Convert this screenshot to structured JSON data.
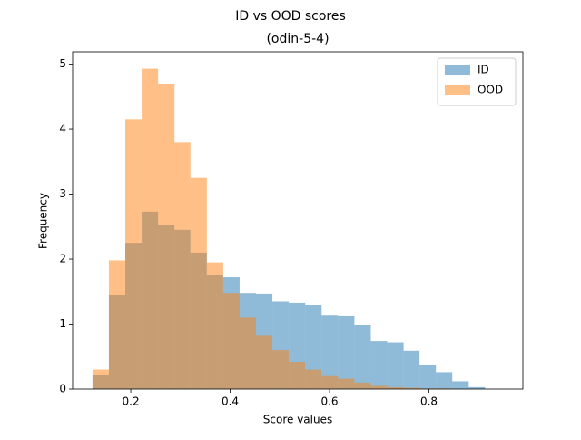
{
  "chart_data": {
    "type": "histogram",
    "title": "ID vs OOD scores",
    "subtitle": "(odin-5-4)",
    "x_label": "Score values",
    "y_label": "Frequency",
    "bins": [
      0.123,
      0.156,
      0.189,
      0.222,
      0.255,
      0.288,
      0.32,
      0.353,
      0.386,
      0.419,
      0.452,
      0.485,
      0.518,
      0.551,
      0.584,
      0.617,
      0.65,
      0.683,
      0.716,
      0.749,
      0.781,
      0.814,
      0.847,
      0.88,
      0.913
    ],
    "series": [
      {
        "name": "ID",
        "color": "#1f77b4",
        "opacity": 0.5,
        "values": [
          0.21,
          1.45,
          2.25,
          2.73,
          2.52,
          2.45,
          2.1,
          1.75,
          1.72,
          1.48,
          1.47,
          1.35,
          1.33,
          1.3,
          1.13,
          1.12,
          0.99,
          0.74,
          0.72,
          0.59,
          0.37,
          0.26,
          0.12,
          0.03
        ]
      },
      {
        "name": "OOD",
        "color": "#ff7f0e",
        "opacity": 0.5,
        "values": [
          0.3,
          1.98,
          4.15,
          4.93,
          4.7,
          3.8,
          3.25,
          1.95,
          1.48,
          1.1,
          0.82,
          0.6,
          0.42,
          0.3,
          0.2,
          0.16,
          0.1,
          0.05,
          0.03,
          0.02,
          0.01,
          0.01,
          0,
          0
        ]
      }
    ],
    "xlim": [
      0.083,
      0.989
    ],
    "ylim": [
      0,
      5.19
    ],
    "xticks": [
      0.2,
      0.4,
      0.6,
      0.8
    ],
    "yticks": [
      0,
      1,
      2,
      3,
      4,
      5
    ],
    "legend": "upper right"
  }
}
